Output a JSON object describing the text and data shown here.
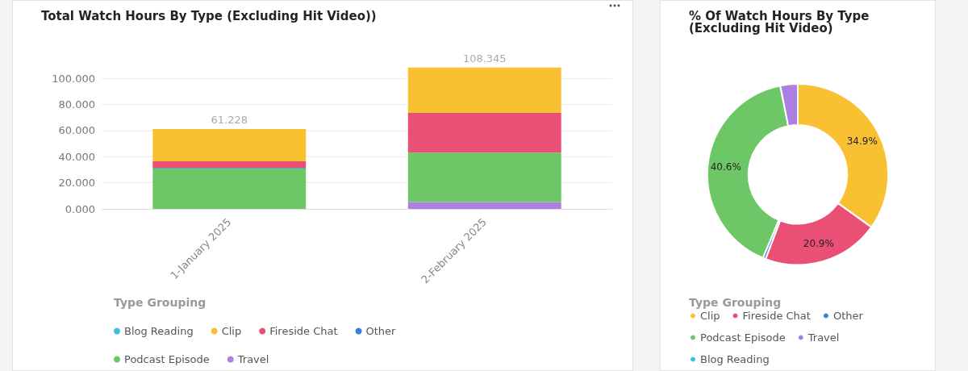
{
  "chart_data": [
    {
      "type": "bar",
      "title": "Total Watch Hours By Type (Excluding Hit Video))",
      "categories": [
        "1-January 2025",
        "2-February 2025"
      ],
      "stacked": true,
      "legend_title": "Type Grouping",
      "legend": "bottom",
      "grid": "y",
      "series": [
        {
          "name": "Travel",
          "color": "#ad7fe0",
          "values": [
            0,
            5.3
          ]
        },
        {
          "name": "Podcast Episode",
          "color": "#6ec766",
          "values": [
            31.0,
            37.8
          ]
        },
        {
          "name": "Other",
          "color": "#3b7dd8",
          "values": [
            0.5,
            null
          ]
        },
        {
          "name": "Fireside Chat",
          "color": "#ea5076",
          "values": [
            5.0,
            30.4
          ]
        },
        {
          "name": "Clip",
          "color": "#f9c132",
          "values": [
            24.728,
            34.845
          ]
        },
        {
          "name": "Blog Reading",
          "color": "#3bbfe0",
          "values": [
            0,
            0
          ]
        }
      ],
      "totals": [
        "61.228",
        "108.345"
      ],
      "ylim": [
        0,
        110
      ],
      "yticks": [
        {
          "value": 0,
          "label": "0.000"
        },
        {
          "value": 20,
          "label": "20.000"
        },
        {
          "value": 40,
          "label": "40.000"
        },
        {
          "value": 60,
          "label": "60.000"
        },
        {
          "value": 80,
          "label": "80.000"
        },
        {
          "value": 100,
          "label": "100.000"
        }
      ]
    },
    {
      "type": "donut",
      "title": "% Of Watch Hours By Type (Excluding Hit Video)",
      "legend_title": "Type Grouping",
      "legend": "bottom",
      "categories": [
        "Clip",
        "Fireside Chat",
        "Other",
        "Podcast Episode",
        "Travel",
        "Blog Reading"
      ],
      "values": [
        34.9,
        20.9,
        0.5,
        40.6,
        3.1,
        0
      ],
      "colors": [
        "#f9c132",
        "#ea5076",
        "#3b7dd8",
        "#6ec766",
        "#ad7fe0",
        "#3bbfe0"
      ],
      "value_labels": [
        "34.9%",
        "20.9%",
        null,
        "40.6%",
        null,
        null
      ]
    }
  ]
}
